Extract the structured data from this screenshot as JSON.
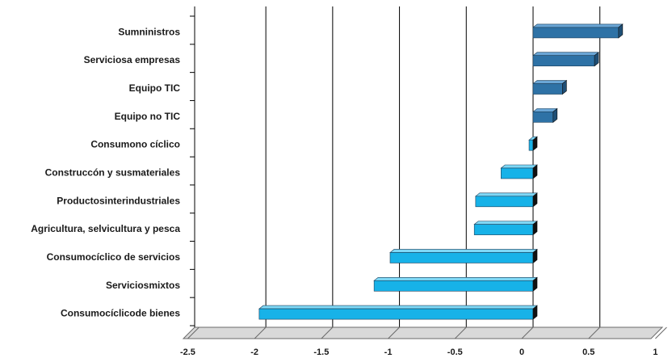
{
  "chart_data": {
    "type": "bar",
    "orientation": "horizontal",
    "categories": [
      "Sumninistros",
      "Serviciosa empresas",
      "Equipo TIC",
      "Equipo no TIC",
      "Consumono cíclico",
      "Construccón y susmateriales",
      "Productosinterindustriales",
      "Agricultura, selvicultura y pesca",
      "Consumocíclico de servicios",
      "Serviciosmixtos",
      "Consumocíclicode bienes"
    ],
    "values": [
      0.64,
      0.46,
      0.22,
      0.15,
      -0.03,
      -0.24,
      -0.43,
      -0.44,
      -1.07,
      -1.19,
      -2.05
    ],
    "xlim": [
      -2.5,
      1
    ],
    "xticks": [
      "-2.5",
      "-2",
      "-1.5",
      "-1",
      "-0.5",
      "0",
      "0.5",
      "1"
    ],
    "grid": "vertical",
    "colors": {
      "positive": "#2e72a6",
      "negative": "#17b2e8"
    }
  }
}
